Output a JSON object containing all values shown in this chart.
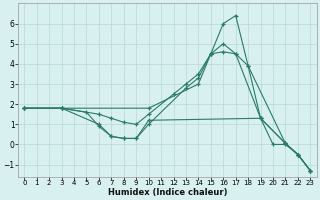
{
  "xlabel": "Humidex (Indice chaleur)",
  "bg_color": "#d8f0f0",
  "grid_color": "#b8d8d8",
  "line_color": "#2a7a6a",
  "xlim": [
    -0.5,
    23.5
  ],
  "ylim": [
    -1.6,
    7.0
  ],
  "yticks": [
    -1,
    0,
    1,
    2,
    3,
    4,
    5,
    6
  ],
  "xticks": [
    0,
    1,
    2,
    3,
    4,
    5,
    6,
    7,
    8,
    9,
    10,
    11,
    12,
    13,
    14,
    15,
    16,
    17,
    18,
    19,
    20,
    21,
    22,
    23
  ],
  "lines": [
    {
      "x": [
        0,
        3,
        10,
        14,
        15,
        16,
        17,
        18,
        19,
        21,
        22,
        23
      ],
      "y": [
        1.8,
        1.8,
        1.8,
        3.0,
        4.5,
        6.0,
        6.4,
        3.9,
        1.3,
        0.05,
        -0.5,
        -1.3
      ]
    },
    {
      "x": [
        0,
        3,
        6,
        7,
        8,
        9,
        10,
        12,
        13,
        14,
        15,
        16,
        17,
        18,
        21,
        22,
        23
      ],
      "y": [
        1.8,
        1.8,
        1.5,
        1.3,
        1.1,
        1.0,
        1.5,
        2.5,
        3.0,
        3.5,
        4.5,
        4.6,
        4.5,
        3.9,
        0.05,
        -0.5,
        -1.3
      ]
    },
    {
      "x": [
        0,
        3,
        6,
        7,
        8,
        9,
        10,
        13,
        14,
        15,
        16,
        17,
        19,
        21,
        22,
        23
      ],
      "y": [
        1.8,
        1.8,
        1.0,
        0.4,
        0.3,
        0.3,
        1.0,
        2.8,
        3.3,
        4.5,
        5.0,
        4.5,
        1.3,
        0.05,
        -0.5,
        -1.3
      ]
    },
    {
      "x": [
        0,
        3,
        5,
        6,
        7,
        8,
        9,
        10,
        19,
        20,
        21,
        22,
        23
      ],
      "y": [
        1.8,
        1.8,
        1.6,
        0.9,
        0.4,
        0.3,
        0.3,
        1.2,
        1.3,
        0.0,
        0.0,
        -0.5,
        -1.3
      ]
    }
  ]
}
